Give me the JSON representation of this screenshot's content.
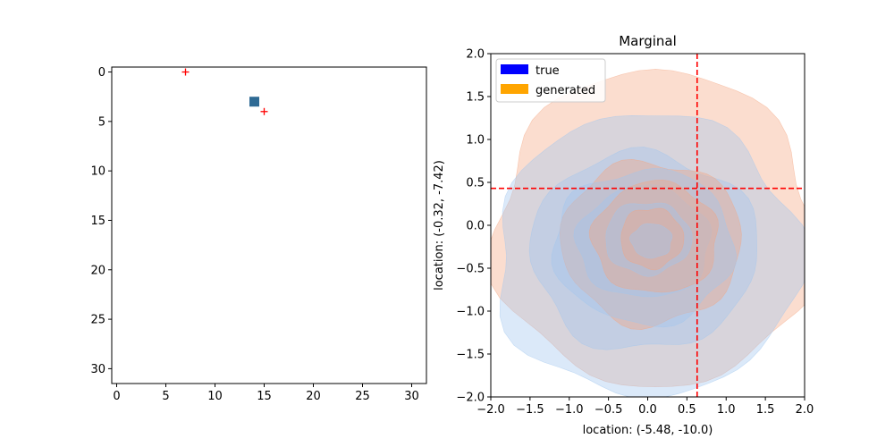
{
  "chart_data": [
    {
      "type": "scatter",
      "title": "",
      "xlabel": "",
      "ylabel": "",
      "xlim": [
        -0.5,
        31.5
      ],
      "ylim": [
        31.5,
        -0.5
      ],
      "x_ticks": [
        0,
        5,
        10,
        15,
        20,
        25,
        30
      ],
      "y_ticks": [
        0,
        5,
        10,
        15,
        20,
        25,
        30
      ],
      "grid": false,
      "series": [
        {
          "marker": "square",
          "color": "#2e6a94",
          "points": [
            {
              "x": 14,
              "y": 3
            }
          ]
        },
        {
          "marker": "plus",
          "color": "#ff0000",
          "points": [
            {
              "x": 7,
              "y": 0
            },
            {
              "x": 15,
              "y": 4
            }
          ]
        }
      ]
    },
    {
      "type": "contour",
      "title": "Marginal",
      "xlabel": "location: (-5.48, -10.0)",
      "ylabel": "location: (-0.32, -7.42)",
      "xlim": [
        -2.0,
        2.0
      ],
      "ylim": [
        -2.0,
        2.0
      ],
      "x_ticks": [
        -2.0,
        -1.5,
        -1.0,
        -0.5,
        0.0,
        0.5,
        1.0,
        1.5,
        2.0
      ],
      "y_ticks": [
        -2.0,
        -1.5,
        -1.0,
        -0.5,
        0.0,
        0.5,
        1.0,
        1.5,
        2.0
      ],
      "grid": false,
      "legend_position": "top-left",
      "series": [
        {
          "name": "true",
          "legend_color": "#0000ff",
          "fill_color": "#a1c6ee",
          "levels": [
            {
              "cx": 0.0,
              "cy": -0.35,
              "rx": 1.95,
              "ry": 1.65
            },
            {
              "cx": -0.05,
              "cy": -0.3,
              "rx": 1.45,
              "ry": 1.15
            },
            {
              "cx": -0.05,
              "cy": -0.25,
              "rx": 1.15,
              "ry": 0.9
            },
            {
              "cx": -0.05,
              "cy": -0.2,
              "rx": 0.85,
              "ry": 0.65
            },
            {
              "cx": 0.0,
              "cy": -0.15,
              "rx": 0.55,
              "ry": 0.42
            },
            {
              "cx": 0.05,
              "cy": -0.18,
              "rx": 0.26,
              "ry": 0.2
            }
          ]
        },
        {
          "name": "generated",
          "legend_color": "#ffa500",
          "fill_color": "#f4a582",
          "levels": [
            {
              "cx": 0.1,
              "cy": -0.05,
              "rx": 2.05,
              "ry": 1.85
            },
            {
              "cx": 0.05,
              "cy": -0.2,
              "rx": 1.15,
              "ry": 0.95
            },
            {
              "cx": 0.1,
              "cy": -0.15,
              "rx": 0.8,
              "ry": 0.65
            },
            {
              "cx": 0.05,
              "cy": -0.15,
              "rx": 0.4,
              "ry": 0.35
            }
          ]
        }
      ],
      "reference_lines": {
        "x": 0.63,
        "y": 0.43,
        "color": "#ff0000",
        "style": "dashed"
      }
    }
  ]
}
